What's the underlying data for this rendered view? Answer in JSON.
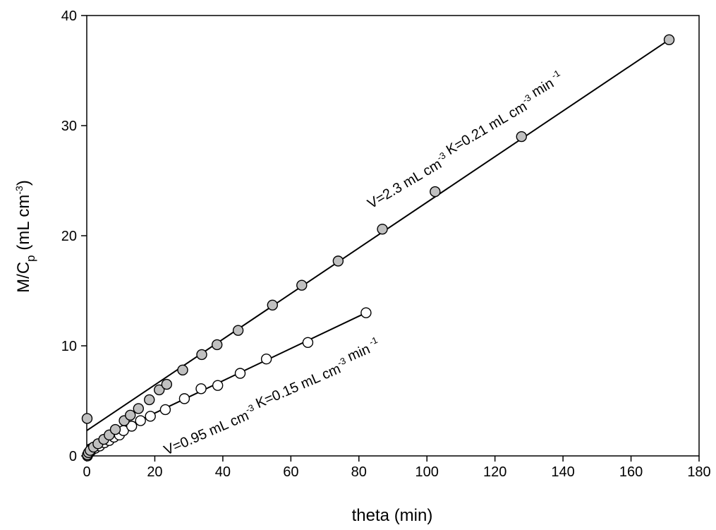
{
  "chart_data": {
    "type": "scatter",
    "xlabel": "theta (min)",
    "ylabel": {
      "main": "M/C",
      "sub": "p",
      "unit_open": " (mL cm",
      "unit_sup": "-3",
      "unit_close": ")"
    },
    "xlim": [
      0,
      180
    ],
    "ylim": [
      0,
      40
    ],
    "x_ticks": [
      0,
      20,
      40,
      60,
      80,
      100,
      120,
      140,
      160,
      180
    ],
    "y_ticks": [
      0,
      10,
      20,
      30,
      40
    ],
    "grid": false,
    "series": [
      {
        "marker": "filled-circle",
        "color": "#c0c0c0",
        "points": [
          [
            0.1,
            3.4
          ],
          [
            0.2,
            0.1
          ],
          [
            0.5,
            0.3
          ],
          [
            1.0,
            0.5
          ],
          [
            2.0,
            0.8
          ],
          [
            3.3,
            1.1
          ],
          [
            5.0,
            1.5
          ],
          [
            6.6,
            1.9
          ],
          [
            8.4,
            2.4
          ],
          [
            11.0,
            3.2
          ],
          [
            12.8,
            3.7
          ],
          [
            15.2,
            4.3
          ],
          [
            18.4,
            5.1
          ],
          [
            21.3,
            6.0
          ],
          [
            23.5,
            6.5
          ],
          [
            28.2,
            7.8
          ],
          [
            33.8,
            9.2
          ],
          [
            38.3,
            10.1
          ],
          [
            44.5,
            11.4
          ],
          [
            54.6,
            13.7
          ],
          [
            63.2,
            15.5
          ],
          [
            73.9,
            17.7
          ],
          [
            86.9,
            20.6
          ],
          [
            102.4,
            24.0
          ],
          [
            127.8,
            29.0
          ],
          [
            171.2,
            37.8
          ]
        ],
        "fit": {
          "x": [
            0,
            171.2
          ],
          "y": [
            2.3,
            37.8
          ]
        }
      },
      {
        "marker": "open-circle",
        "color": "#ffffff",
        "points": [
          [
            0.2,
            0.0
          ],
          [
            0.4,
            0.2
          ],
          [
            0.8,
            0.3
          ],
          [
            1.4,
            0.5
          ],
          [
            2.5,
            0.7
          ],
          [
            3.8,
            0.9
          ],
          [
            5.2,
            1.2
          ],
          [
            6.6,
            1.4
          ],
          [
            8.0,
            1.7
          ],
          [
            9.6,
            1.9
          ],
          [
            10.8,
            2.3
          ],
          [
            13.2,
            2.7
          ],
          [
            15.8,
            3.2
          ],
          [
            18.7,
            3.6
          ],
          [
            23.1,
            4.2
          ],
          [
            28.7,
            5.2
          ],
          [
            33.6,
            6.1
          ],
          [
            38.5,
            6.4
          ],
          [
            45.1,
            7.5
          ],
          [
            52.8,
            8.8
          ],
          [
            65.0,
            10.3
          ],
          [
            82.1,
            13.0
          ]
        ],
        "fit": {
          "x": [
            0,
            82.1
          ],
          "y": [
            0.95,
            13.0
          ]
        }
      }
    ],
    "annotations": [
      {
        "parts": [
          {
            "t": "V=2.3 mL cm"
          },
          {
            "t": "-3",
            "sup": true
          },
          {
            "t": "  K=0.21 mL cm"
          },
          {
            "t": "-3",
            "sup": true
          },
          {
            "t": "  min"
          },
          {
            "t": " -1",
            "sup": true
          }
        ]
      },
      {
        "parts": [
          {
            "t": "V=0.95 mL cm"
          },
          {
            "t": "-3",
            "sup": true
          },
          {
            "t": "  K=0.15 mL cm"
          },
          {
            "t": "-3",
            "sup": true
          },
          {
            "t": "  min"
          },
          {
            "t": " -1",
            "sup": true
          }
        ]
      }
    ]
  }
}
